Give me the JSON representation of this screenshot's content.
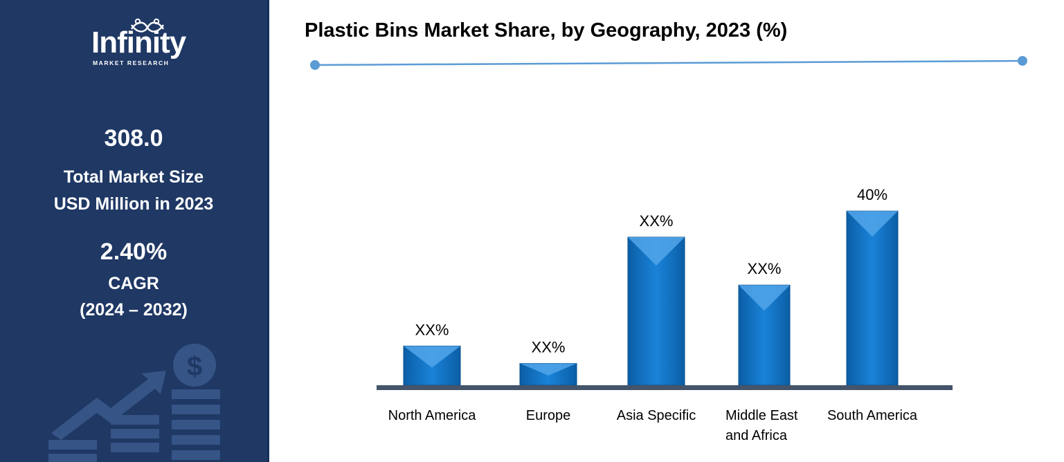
{
  "brand": {
    "logo_name": "Infinity",
    "logo_tagline": "MARKET RESEARCH",
    "logo_icon": "people-loop-icon"
  },
  "sidebar": {
    "market_size_value": "308.0",
    "market_size_label_line1": "Total Market Size",
    "market_size_label_line2": "USD Million in 2023",
    "cagr_value": "2.40%",
    "cagr_label": "CAGR",
    "cagr_period": "(2024 – 2032)",
    "decoration_icon": "growth-dollar-icon",
    "background_color": "#1f3864"
  },
  "chart_data": {
    "type": "bar",
    "title": "Plastic Bins Market Share, by Geography, 2023 (%)",
    "categories": [
      "North America",
      "Europe",
      "Asia Specific",
      "Middle East and Africa",
      "South America"
    ],
    "category_label_lines": [
      [
        "North America"
      ],
      [
        "Europe"
      ],
      [
        "Asia Specific"
      ],
      [
        "Middle East",
        "and Africa"
      ],
      [
        "South America"
      ]
    ],
    "values": [
      9,
      5,
      34,
      23,
      40
    ],
    "data_labels": [
      "XX%",
      "XX%",
      "XX%",
      "XX%",
      "40%"
    ],
    "ylim": [
      0,
      44
    ],
    "grid": false,
    "legend": "none",
    "bar_color": "#1173c7",
    "axis_color": "#44546a",
    "accent_color": "#5b9bd5"
  }
}
